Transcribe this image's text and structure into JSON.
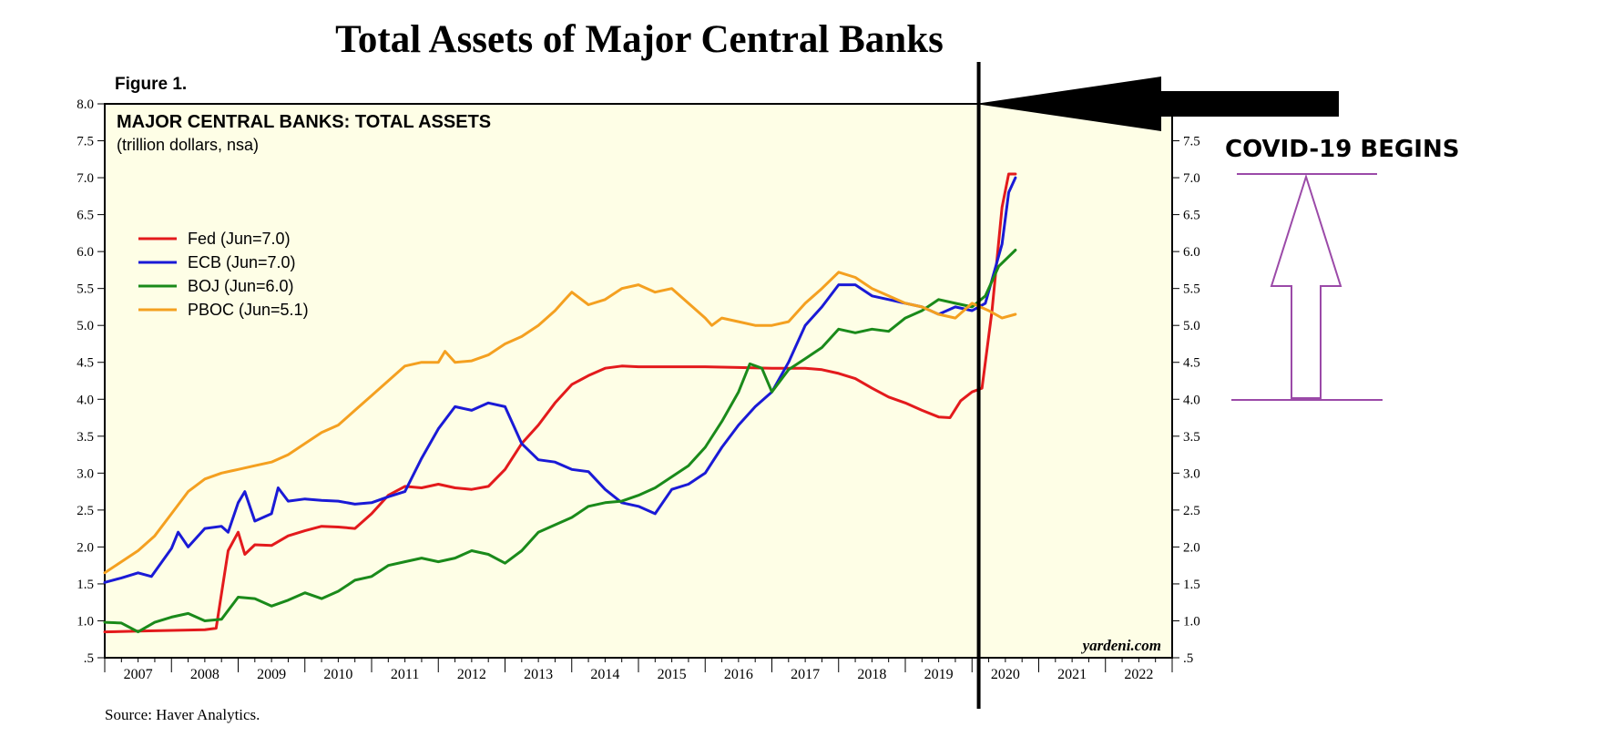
{
  "page_title": "Total Assets of Major Central Banks",
  "figure_label": "Figure 1.",
  "source": "Source: Haver Analytics.",
  "watermark": "yardeni.com",
  "annotation": "COVID-19 BEGINS",
  "chart_data": {
    "type": "line",
    "title": "MAJOR CENTRAL BANKS: TOTAL ASSETS",
    "subtitle": "(trillion dollars, nsa)",
    "ylim": [
      0.5,
      8.0
    ],
    "y_ticks_left": [
      "8.0",
      "7.5",
      "7.0",
      "6.5",
      "6.0",
      "5.5",
      "5.0",
      "4.5",
      "4.0",
      "3.5",
      "3.0",
      "2.5",
      "2.0",
      "1.5",
      "1.0",
      ".5"
    ],
    "y_ticks_right": [
      "7.5",
      "7.0",
      "6.5",
      "6.0",
      "5.5",
      "5.0",
      "4.5",
      "4.0",
      "3.5",
      "3.0",
      "2.5",
      "2.0",
      "1.5",
      "1.0",
      ".5"
    ],
    "xlim": [
      2007.0,
      2023.0
    ],
    "x_labels": [
      "2007",
      "2008",
      "2009",
      "2010",
      "2011",
      "2012",
      "2013",
      "2014",
      "2015",
      "2016",
      "2017",
      "2018",
      "2019",
      "2020",
      "2021",
      "2022"
    ],
    "covid_marker_x": 2020.1,
    "series": [
      {
        "name": "Fed",
        "legend": "Fed (Jun=7.0)",
        "color": "#e31a1c",
        "points": [
          [
            2007.0,
            0.85
          ],
          [
            2007.5,
            0.86
          ],
          [
            2008.0,
            0.87
          ],
          [
            2008.5,
            0.88
          ],
          [
            2008.67,
            0.9
          ],
          [
            2008.85,
            1.95
          ],
          [
            2009.0,
            2.2
          ],
          [
            2009.1,
            1.9
          ],
          [
            2009.25,
            2.03
          ],
          [
            2009.5,
            2.02
          ],
          [
            2009.75,
            2.15
          ],
          [
            2010.0,
            2.22
          ],
          [
            2010.25,
            2.28
          ],
          [
            2010.5,
            2.27
          ],
          [
            2010.75,
            2.25
          ],
          [
            2011.0,
            2.45
          ],
          [
            2011.25,
            2.7
          ],
          [
            2011.5,
            2.82
          ],
          [
            2011.75,
            2.8
          ],
          [
            2012.0,
            2.85
          ],
          [
            2012.25,
            2.8
          ],
          [
            2012.5,
            2.78
          ],
          [
            2012.75,
            2.82
          ],
          [
            2013.0,
            3.05
          ],
          [
            2013.25,
            3.4
          ],
          [
            2013.5,
            3.65
          ],
          [
            2013.75,
            3.95
          ],
          [
            2014.0,
            4.2
          ],
          [
            2014.25,
            4.32
          ],
          [
            2014.5,
            4.42
          ],
          [
            2014.75,
            4.45
          ],
          [
            2015.0,
            4.44
          ],
          [
            2015.5,
            4.44
          ],
          [
            2016.0,
            4.44
          ],
          [
            2016.5,
            4.43
          ],
          [
            2017.0,
            4.42
          ],
          [
            2017.5,
            4.42
          ],
          [
            2017.75,
            4.4
          ],
          [
            2018.0,
            4.35
          ],
          [
            2018.25,
            4.28
          ],
          [
            2018.5,
            4.15
          ],
          [
            2018.75,
            4.03
          ],
          [
            2019.0,
            3.95
          ],
          [
            2019.25,
            3.85
          ],
          [
            2019.5,
            3.76
          ],
          [
            2019.67,
            3.75
          ],
          [
            2019.83,
            3.98
          ],
          [
            2020.0,
            4.1
          ],
          [
            2020.15,
            4.15
          ],
          [
            2020.3,
            5.2
          ],
          [
            2020.45,
            6.6
          ],
          [
            2020.55,
            7.05
          ],
          [
            2020.65,
            7.05
          ]
        ]
      },
      {
        "name": "ECB",
        "legend": "ECB (Jun=7.0)",
        "color": "#1a1ad6",
        "points": [
          [
            2007.0,
            1.52
          ],
          [
            2007.25,
            1.58
          ],
          [
            2007.5,
            1.65
          ],
          [
            2007.7,
            1.6
          ],
          [
            2008.0,
            1.98
          ],
          [
            2008.1,
            2.2
          ],
          [
            2008.25,
            2.0
          ],
          [
            2008.5,
            2.25
          ],
          [
            2008.75,
            2.28
          ],
          [
            2008.85,
            2.2
          ],
          [
            2009.0,
            2.6
          ],
          [
            2009.1,
            2.75
          ],
          [
            2009.25,
            2.35
          ],
          [
            2009.5,
            2.45
          ],
          [
            2009.6,
            2.8
          ],
          [
            2009.75,
            2.62
          ],
          [
            2010.0,
            2.65
          ],
          [
            2010.25,
            2.63
          ],
          [
            2010.5,
            2.62
          ],
          [
            2010.75,
            2.58
          ],
          [
            2011.0,
            2.6
          ],
          [
            2011.25,
            2.68
          ],
          [
            2011.5,
            2.75
          ],
          [
            2011.75,
            3.2
          ],
          [
            2012.0,
            3.6
          ],
          [
            2012.25,
            3.9
          ],
          [
            2012.5,
            3.85
          ],
          [
            2012.75,
            3.95
          ],
          [
            2013.0,
            3.9
          ],
          [
            2013.25,
            3.4
          ],
          [
            2013.5,
            3.18
          ],
          [
            2013.75,
            3.15
          ],
          [
            2014.0,
            3.05
          ],
          [
            2014.25,
            3.02
          ],
          [
            2014.5,
            2.78
          ],
          [
            2014.75,
            2.6
          ],
          [
            2015.0,
            2.55
          ],
          [
            2015.25,
            2.45
          ],
          [
            2015.5,
            2.78
          ],
          [
            2015.75,
            2.85
          ],
          [
            2016.0,
            3.0
          ],
          [
            2016.25,
            3.35
          ],
          [
            2016.5,
            3.65
          ],
          [
            2016.75,
            3.9
          ],
          [
            2017.0,
            4.1
          ],
          [
            2017.25,
            4.5
          ],
          [
            2017.5,
            5.0
          ],
          [
            2017.75,
            5.25
          ],
          [
            2018.0,
            5.55
          ],
          [
            2018.25,
            5.55
          ],
          [
            2018.5,
            5.4
          ],
          [
            2018.75,
            5.35
          ],
          [
            2019.0,
            5.3
          ],
          [
            2019.25,
            5.25
          ],
          [
            2019.5,
            5.15
          ],
          [
            2019.75,
            5.25
          ],
          [
            2020.0,
            5.2
          ],
          [
            2020.2,
            5.3
          ],
          [
            2020.45,
            6.1
          ],
          [
            2020.55,
            6.8
          ],
          [
            2020.65,
            7.0
          ]
        ]
      },
      {
        "name": "BOJ",
        "legend": "BOJ (Jun=6.0)",
        "color": "#1a8a1a",
        "points": [
          [
            2007.0,
            0.98
          ],
          [
            2007.25,
            0.97
          ],
          [
            2007.5,
            0.85
          ],
          [
            2007.75,
            0.98
          ],
          [
            2008.0,
            1.05
          ],
          [
            2008.25,
            1.1
          ],
          [
            2008.5,
            1.0
          ],
          [
            2008.75,
            1.02
          ],
          [
            2009.0,
            1.32
          ],
          [
            2009.25,
            1.3
          ],
          [
            2009.5,
            1.2
          ],
          [
            2009.75,
            1.28
          ],
          [
            2010.0,
            1.38
          ],
          [
            2010.25,
            1.3
          ],
          [
            2010.5,
            1.4
          ],
          [
            2010.75,
            1.55
          ],
          [
            2011.0,
            1.6
          ],
          [
            2011.25,
            1.75
          ],
          [
            2011.5,
            1.8
          ],
          [
            2011.75,
            1.85
          ],
          [
            2012.0,
            1.8
          ],
          [
            2012.25,
            1.85
          ],
          [
            2012.5,
            1.95
          ],
          [
            2012.75,
            1.9
          ],
          [
            2013.0,
            1.78
          ],
          [
            2013.25,
            1.95
          ],
          [
            2013.5,
            2.2
          ],
          [
            2013.75,
            2.3
          ],
          [
            2014.0,
            2.4
          ],
          [
            2014.25,
            2.55
          ],
          [
            2014.5,
            2.6
          ],
          [
            2014.75,
            2.62
          ],
          [
            2015.0,
            2.7
          ],
          [
            2015.25,
            2.8
          ],
          [
            2015.5,
            2.95
          ],
          [
            2015.75,
            3.1
          ],
          [
            2016.0,
            3.35
          ],
          [
            2016.25,
            3.7
          ],
          [
            2016.5,
            4.1
          ],
          [
            2016.67,
            4.48
          ],
          [
            2016.85,
            4.42
          ],
          [
            2017.0,
            4.1
          ],
          [
            2017.25,
            4.4
          ],
          [
            2017.5,
            4.55
          ],
          [
            2017.75,
            4.7
          ],
          [
            2018.0,
            4.95
          ],
          [
            2018.25,
            4.9
          ],
          [
            2018.5,
            4.95
          ],
          [
            2018.75,
            4.92
          ],
          [
            2019.0,
            5.1
          ],
          [
            2019.25,
            5.2
          ],
          [
            2019.5,
            5.35
          ],
          [
            2019.75,
            5.3
          ],
          [
            2020.0,
            5.25
          ],
          [
            2020.2,
            5.4
          ],
          [
            2020.4,
            5.8
          ],
          [
            2020.65,
            6.02
          ]
        ]
      },
      {
        "name": "PBOC",
        "legend": "PBOC (Jun=5.1)",
        "color": "#f4a020",
        "points": [
          [
            2007.0,
            1.65
          ],
          [
            2007.25,
            1.8
          ],
          [
            2007.5,
            1.95
          ],
          [
            2007.75,
            2.15
          ],
          [
            2008.0,
            2.45
          ],
          [
            2008.25,
            2.75
          ],
          [
            2008.5,
            2.92
          ],
          [
            2008.75,
            3.0
          ],
          [
            2009.0,
            3.05
          ],
          [
            2009.25,
            3.1
          ],
          [
            2009.5,
            3.15
          ],
          [
            2009.75,
            3.25
          ],
          [
            2010.0,
            3.4
          ],
          [
            2010.25,
            3.55
          ],
          [
            2010.5,
            3.65
          ],
          [
            2010.75,
            3.85
          ],
          [
            2011.0,
            4.05
          ],
          [
            2011.25,
            4.25
          ],
          [
            2011.5,
            4.45
          ],
          [
            2011.75,
            4.5
          ],
          [
            2012.0,
            4.5
          ],
          [
            2012.1,
            4.65
          ],
          [
            2012.25,
            4.5
          ],
          [
            2012.5,
            4.52
          ],
          [
            2012.75,
            4.6
          ],
          [
            2013.0,
            4.75
          ],
          [
            2013.25,
            4.85
          ],
          [
            2013.5,
            5.0
          ],
          [
            2013.75,
            5.2
          ],
          [
            2013.9,
            5.35
          ],
          [
            2014.0,
            5.45
          ],
          [
            2014.25,
            5.28
          ],
          [
            2014.5,
            5.35
          ],
          [
            2014.75,
            5.5
          ],
          [
            2015.0,
            5.55
          ],
          [
            2015.25,
            5.45
          ],
          [
            2015.5,
            5.5
          ],
          [
            2015.75,
            5.3
          ],
          [
            2016.0,
            5.1
          ],
          [
            2016.1,
            5.0
          ],
          [
            2016.25,
            5.1
          ],
          [
            2016.5,
            5.05
          ],
          [
            2016.75,
            5.0
          ],
          [
            2017.0,
            5.0
          ],
          [
            2017.25,
            5.05
          ],
          [
            2017.5,
            5.3
          ],
          [
            2017.75,
            5.5
          ],
          [
            2018.0,
            5.72
          ],
          [
            2018.25,
            5.65
          ],
          [
            2018.5,
            5.5
          ],
          [
            2018.75,
            5.4
          ],
          [
            2019.0,
            5.3
          ],
          [
            2019.25,
            5.25
          ],
          [
            2019.5,
            5.15
          ],
          [
            2019.75,
            5.1
          ],
          [
            2020.0,
            5.3
          ],
          [
            2020.25,
            5.2
          ],
          [
            2020.45,
            5.1
          ],
          [
            2020.65,
            5.15
          ]
        ]
      }
    ]
  }
}
